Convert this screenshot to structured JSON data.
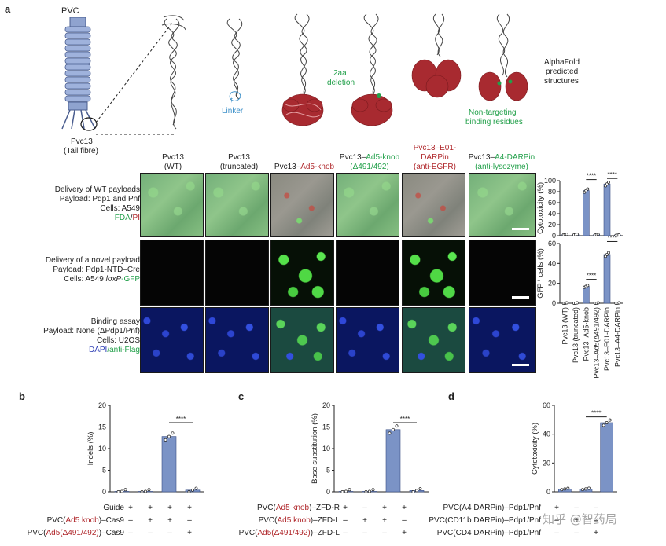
{
  "panel_a": {
    "letter": "a",
    "pvc_label": "PVC",
    "pvc13_label": "Pvc13",
    "tail_fibre_label": "(Tail fibre)",
    "linker_label": "Linker",
    "deletion_label_1": "2aa",
    "deletion_label_2": "deletion",
    "nontargeting_label_1": "Non-targeting",
    "nontargeting_label_2": "binding residues",
    "alphafold_1": "AlphaFold",
    "alphafold_2": "predicted",
    "alphafold_3": "structures",
    "columns": [
      {
        "l1": "Pvc13",
        "l2": "(WT)"
      },
      {
        "l1": "Pvc13",
        "l2": "(truncated)"
      },
      {
        "l1": "Pvc13–",
        "l1b": "Ad5-knob",
        "l2": ""
      },
      {
        "l1": "Pvc13–",
        "l1b": "Ad5-knob",
        "l2": "(Δ491/492)"
      },
      {
        "l1": "Pvc13–",
        "l1b": "E01-",
        "l2": "DARPin",
        "l3": "(anti-EGFR)"
      },
      {
        "l1": "Pvc13–",
        "l1b": "A4-DARPin",
        "l2": "(anti-lysozyme)"
      }
    ],
    "rows": [
      {
        "l1": "Delivery of WT payloads",
        "l2": "Payload: Pdp1 and Pnf",
        "l3": "Cells: A549",
        "l4a": "FDA",
        "l4b": "/",
        "l4c": "PI"
      },
      {
        "l1": "Delivery of a novel payload",
        "l2": "Payload: Pdp1-NTD–Cre",
        "l3a": "Cells: A549 ",
        "l3b": "loxP",
        "l3c": "-GFP"
      },
      {
        "l1": "Binding assay",
        "l2": "Payload: None (ΔPdp1/Pnf)",
        "l3": "Cells: U2OS",
        "l4a": "DAPI",
        "l4b": "/anti-Flag"
      }
    ]
  },
  "chart_data": [
    {
      "type": "bar",
      "panel": "a-top",
      "categories": [
        "Pvc13 (WT)",
        "Pvc13 (truncated)",
        "Pvc13–Ad5-knob",
        "Pvc13–Ad5(Δ491/492)",
        "Pvc13–E01-DARPin",
        "Pvc13–A4-DARPin"
      ],
      "values": [
        2,
        2,
        82,
        2,
        94,
        1
      ],
      "ylabel": "Cytotoxicity (%)",
      "ylim": [
        0,
        100
      ],
      "yticks": [
        "0",
        "20",
        "40",
        "60",
        "80",
        "100"
      ],
      "significance": [
        "****",
        "****"
      ]
    },
    {
      "type": "bar",
      "panel": "a-middle",
      "categories": [
        "Pvc13 (WT)",
        "Pvc13 (truncated)",
        "Pvc13–Ad5-knob",
        "Pvc13–Ad5(Δ491/492)",
        "Pvc13–E01-DARPin",
        "Pvc13–A4-DARPin"
      ],
      "values": [
        0,
        0,
        17,
        0,
        49,
        0
      ],
      "ylabel": "GFP⁺ cells (%)",
      "ylim": [
        0,
        60
      ],
      "yticks": [
        "0",
        "20",
        "40",
        "60"
      ],
      "significance": [
        "****",
        "****"
      ]
    },
    {
      "type": "bar",
      "panel": "b",
      "values": [
        0.1,
        0.1,
        12.8,
        0.4
      ],
      "ylabel": "Indels (%)",
      "ylim": [
        0,
        20
      ],
      "yticks": [
        "0",
        "5",
        "10",
        "15",
        "20"
      ],
      "significance": [
        "****"
      ]
    },
    {
      "type": "bar",
      "panel": "c",
      "values": [
        0.1,
        0.1,
        14.4,
        0.3
      ],
      "ylabel": "Base substitution (%)",
      "ylim": [
        0,
        20
      ],
      "yticks": [
        "0",
        "5",
        "10",
        "15",
        "20"
      ],
      "significance": [
        "****"
      ]
    },
    {
      "type": "bar",
      "panel": "d",
      "values": [
        2,
        2,
        48
      ],
      "ylabel": "Cytotoxicity (%)",
      "ylim": [
        0,
        60
      ],
      "yticks": [
        "0",
        "20",
        "40",
        "60"
      ],
      "significance": [
        "****"
      ]
    }
  ],
  "panel_b": {
    "letter": "b",
    "rows": [
      {
        "label": "Guide",
        "signs": [
          "+",
          "+",
          "+",
          "+"
        ]
      },
      {
        "label_a": "PVC(",
        "label_b": "Ad5 knob",
        "label_c": ")–Cas9",
        "signs": [
          "–",
          "+",
          "+",
          "–"
        ]
      },
      {
        "label_a": "PVC(",
        "label_b": "Ad5(Δ491/492)",
        "label_c": ")–Cas9",
        "signs": [
          "–",
          "–",
          "–",
          "+"
        ]
      }
    ]
  },
  "panel_c": {
    "letter": "c",
    "rows": [
      {
        "label_a": "PVC(",
        "label_b": "Ad5 knob",
        "label_c": ")–ZFD-R",
        "signs": [
          "+",
          "–",
          "+",
          "+"
        ]
      },
      {
        "label_a": "PVC(",
        "label_b": "Ad5 knob",
        "label_c": ")–ZFD-L",
        "signs": [
          "–",
          "+",
          "+",
          "–"
        ]
      },
      {
        "label_a": "PVC(",
        "label_b": "Ad5(Δ491/492)",
        "label_c": ")–ZFD-L",
        "signs": [
          "–",
          "–",
          "–",
          "+"
        ]
      }
    ]
  },
  "panel_d": {
    "letter": "d",
    "rows": [
      {
        "label": "PVC(A4 DARPin)–Pdp1/Pnf",
        "signs": [
          "+",
          "–",
          "–"
        ]
      },
      {
        "label": "PVC(CD11b DARPin)–Pdp1/Pnf",
        "signs": [
          "–",
          "+",
          "–"
        ]
      },
      {
        "label": "PVC(CD4 DARPin)–Pdp1/Pnf",
        "signs": [
          "–",
          "–",
          "+"
        ]
      }
    ]
  },
  "watermark": "知乎 @智药局",
  "colors": {
    "bar": "#7b93c6",
    "red": "#b0282c",
    "green": "#22a04a",
    "blue": "#2f3fb5",
    "linker": "#3b8fc8"
  }
}
